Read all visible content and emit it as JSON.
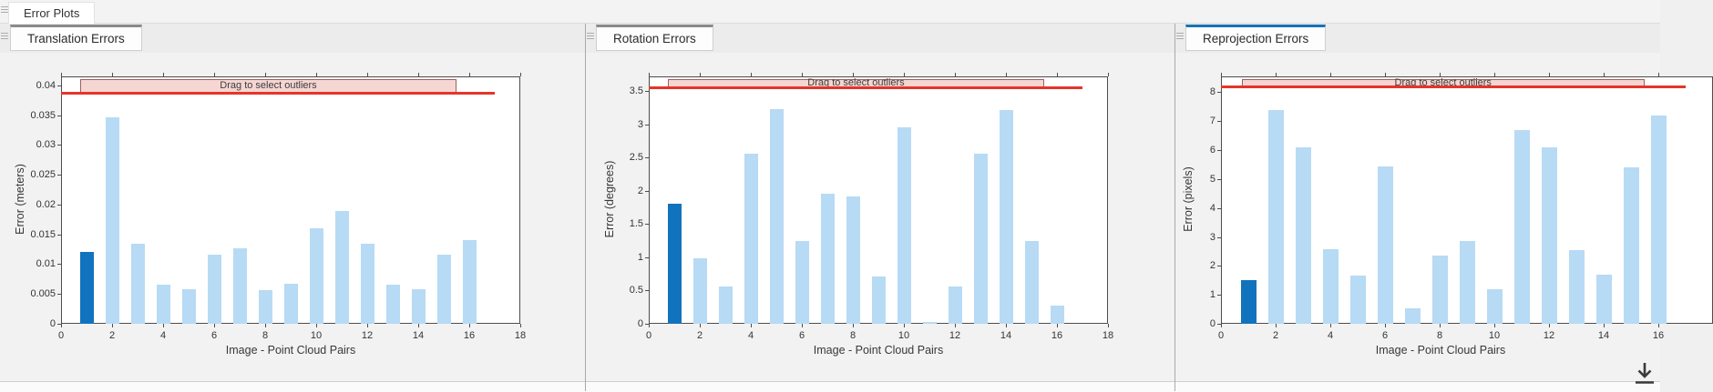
{
  "app": {
    "document_tab": "Error Plots"
  },
  "colors": {
    "bar": "#b7daf5",
    "bar_selected": "#1173bd",
    "threshold_line": "#e4352b",
    "band_fill": "#f5d6d3",
    "band_border": "#9a625c",
    "tab_focused_accent": "#1673b9",
    "tab_accent": "#8a8a8a"
  },
  "panels": [
    {
      "id": "translation",
      "tab_label": "Translation Errors",
      "focused": false,
      "ylabel": "Error (meters)",
      "xlabel": "Image - Point Cloud Pairs",
      "band_label": "Drag to select outliers",
      "yticks": [
        "0",
        "0.005",
        "0.01",
        "0.015",
        "0.02",
        "0.025",
        "0.03",
        "0.035",
        "0.04"
      ],
      "xticks": [
        0,
        2,
        4,
        6,
        8,
        10,
        12,
        14,
        16,
        18
      ],
      "ymax": 0.0415,
      "threshold": 0.0388,
      "chart_index": 0
    },
    {
      "id": "rotation",
      "tab_label": "Rotation Errors",
      "focused": false,
      "ylabel": "Error (degrees)",
      "xlabel": "Image - Point Cloud Pairs",
      "band_label": "Drag to select outliers",
      "yticks": [
        "0",
        "0.5",
        "1",
        "1.5",
        "2",
        "2.5",
        "3",
        "3.5"
      ],
      "xticks": [
        0,
        2,
        4,
        6,
        8,
        10,
        12,
        14,
        16,
        18
      ],
      "ymax": 3.72,
      "threshold": 3.56,
      "chart_index": 1
    },
    {
      "id": "reprojection",
      "tab_label": "Reprojection Errors",
      "focused": true,
      "ylabel": "Error (pixels)",
      "xlabel": "Image - Point Cloud Pairs",
      "band_label": "Drag to select outliers",
      "yticks": [
        "0",
        "1",
        "2",
        "3",
        "4",
        "5",
        "6",
        "7",
        "8"
      ],
      "xticks": [
        0,
        2,
        4,
        6,
        8,
        10,
        12,
        14,
        16
      ],
      "ymax": 8.55,
      "threshold": 8.2,
      "chart_index": 2
    }
  ],
  "chart_data": [
    {
      "type": "bar",
      "title": "Translation Errors",
      "xlabel": "Image - Point Cloud Pairs",
      "ylabel": "Error (meters)",
      "x": [
        1,
        2,
        3,
        4,
        5,
        6,
        7,
        8,
        9,
        10,
        11,
        12,
        13,
        14,
        15,
        16
      ],
      "values": [
        0.012,
        0.0347,
        0.0135,
        0.0066,
        0.0058,
        0.0116,
        0.0127,
        0.0056,
        0.0067,
        0.016,
        0.0189,
        0.0135,
        0.0066,
        0.0058,
        0.0116,
        0.014
      ],
      "selected_x": 1,
      "xlim": [
        0,
        18
      ],
      "ylim": [
        0,
        0.0415
      ],
      "xticks": [
        0,
        2,
        4,
        6,
        8,
        10,
        12,
        14,
        16,
        18
      ],
      "yticks": [
        0,
        0.005,
        0.01,
        0.015,
        0.02,
        0.025,
        0.03,
        0.035,
        0.04
      ],
      "threshold_line_y": 0.0388,
      "annotation": "Drag to select outliers",
      "annotation_span_x": [
        1,
        15.5
      ],
      "grid": false,
      "legend": "none"
    },
    {
      "type": "bar",
      "title": "Rotation Errors",
      "xlabel": "Image - Point Cloud Pairs",
      "ylabel": "Error (degrees)",
      "x": [
        1,
        2,
        3,
        4,
        5,
        6,
        7,
        8,
        9,
        10,
        11,
        12,
        13,
        14,
        15,
        16
      ],
      "values": [
        1.8,
        0.98,
        0.56,
        2.56,
        3.23,
        1.25,
        1.95,
        1.92,
        0.71,
        2.96,
        0.03,
        0.56,
        2.56,
        3.22,
        1.25,
        0.27
      ],
      "selected_x": 1,
      "xlim": [
        0,
        18
      ],
      "ylim": [
        0,
        3.72
      ],
      "xticks": [
        0,
        2,
        4,
        6,
        8,
        10,
        12,
        14,
        16,
        18
      ],
      "yticks": [
        0,
        0.5,
        1,
        1.5,
        2,
        2.5,
        3,
        3.5
      ],
      "threshold_line_y": 3.56,
      "annotation": "Drag to select outliers",
      "annotation_span_x": [
        1,
        15.5
      ],
      "grid": false,
      "legend": "none"
    },
    {
      "type": "bar",
      "title": "Reprojection Errors",
      "xlabel": "Image - Point Cloud Pairs",
      "ylabel": "Error (pixels)",
      "x": [
        1,
        2,
        3,
        4,
        5,
        6,
        7,
        8,
        9,
        10,
        11,
        12,
        13,
        14,
        15,
        16
      ],
      "values": [
        1.5,
        7.4,
        6.1,
        2.57,
        1.68,
        5.45,
        0.55,
        2.37,
        2.87,
        1.2,
        6.7,
        6.1,
        2.55,
        1.7,
        5.4,
        7.2
      ],
      "selected_x": 1,
      "xlim": [
        0,
        18
      ],
      "ylim": [
        0,
        8.55
      ],
      "xticks": [
        0,
        2,
        4,
        6,
        8,
        10,
        12,
        14,
        16
      ],
      "yticks": [
        0,
        1,
        2,
        3,
        4,
        5,
        6,
        7,
        8
      ],
      "threshold_line_y": 8.2,
      "annotation": "Drag to select outliers",
      "annotation_span_x": [
        1,
        15.5
      ],
      "grid": false,
      "legend": "none"
    }
  ]
}
